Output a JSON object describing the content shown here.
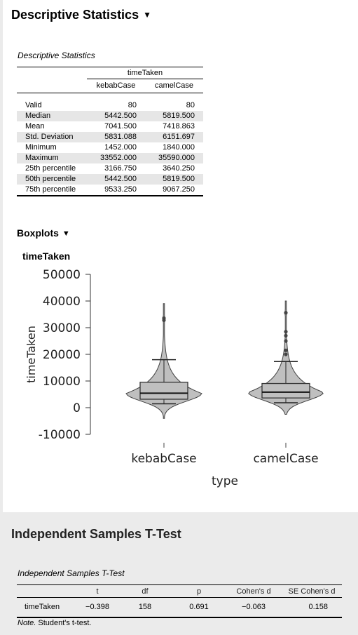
{
  "descriptives": {
    "title": "Descriptive Statistics",
    "caret": "▼",
    "table_caption": "Descriptive Statistics",
    "group_header": "timeTaken",
    "columns": [
      "kebabCase",
      "camelCase"
    ],
    "rows": [
      {
        "label": "Valid",
        "values": [
          "80",
          "80"
        ]
      },
      {
        "label": "Median",
        "values": [
          "5442.500",
          "5819.500"
        ]
      },
      {
        "label": "Mean",
        "values": [
          "7041.500",
          "7418.863"
        ]
      },
      {
        "label": "Std. Deviation",
        "values": [
          "5831.088",
          "6151.697"
        ]
      },
      {
        "label": "Minimum",
        "values": [
          "1452.000",
          "1840.000"
        ]
      },
      {
        "label": "Maximum",
        "values": [
          "33552.000",
          "35590.000"
        ]
      },
      {
        "label": "25th percentile",
        "values": [
          "3166.750",
          "3640.250"
        ]
      },
      {
        "label": "50th percentile",
        "values": [
          "5442.500",
          "5819.500"
        ]
      },
      {
        "label": "75th percentile",
        "values": [
          "9533.250",
          "9067.250"
        ]
      }
    ]
  },
  "boxplots": {
    "title": "Boxplots",
    "caret": "▼",
    "plot_title": "timeTaken"
  },
  "chart_data": {
    "type": "boxplot-violin",
    "title": "timeTaken",
    "xlabel": "type",
    "ylabel": "timeTaken",
    "categories": [
      "kebabCase",
      "camelCase"
    ],
    "y_ticks": [
      "50000",
      "40000",
      "30000",
      "20000",
      "10000",
      "0",
      "-10000"
    ],
    "y_tick_values": [
      50000,
      40000,
      30000,
      20000,
      10000,
      0,
      -10000
    ],
    "ylim": [
      -10000,
      50000
    ],
    "fill_color": "#bfbfbf",
    "stroke_color": "#404040",
    "series": [
      {
        "category": "kebabCase",
        "q1": 3166.75,
        "median": 5442.5,
        "q3": 9533.25,
        "whisker_low": 1452,
        "whisker_high": 18000,
        "violin_min": -4000,
        "violin_max": 39000,
        "outliers": [
          32800,
          33552
        ]
      },
      {
        "category": "camelCase",
        "q1": 3640.25,
        "median": 5819.5,
        "q3": 9067.25,
        "whisker_low": 1840,
        "whisker_high": 17300,
        "violin_min": -2500,
        "violin_max": 40000,
        "outliers": [
          20000,
          21500,
          25000,
          27000,
          28500,
          35590
        ]
      }
    ]
  },
  "ttest": {
    "title": "Independent Samples T-Test",
    "table_caption": "Independent Samples T-Test",
    "columns": [
      "",
      "t",
      "df",
      "p",
      "Cohen's d",
      "SE Cohen's d"
    ],
    "row": [
      "timeTaken",
      "−0.398",
      "158",
      "0.691",
      "−0.063",
      "0.158"
    ],
    "note_label": "Note.",
    "note_text": " Student's t-test."
  }
}
